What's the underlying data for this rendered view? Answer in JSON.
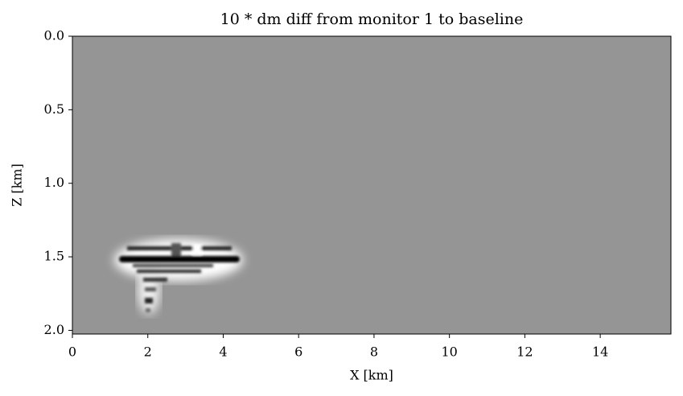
{
  "chart_data": {
    "type": "image",
    "title": "10 * dm diff from monitor 1 to baseline",
    "xlabel": "X [km]",
    "ylabel": "Z [km]",
    "xlim": [
      0,
      15.875
    ],
    "xticks": [
      0,
      2,
      4,
      6,
      8,
      10,
      12,
      14
    ],
    "ylim": [
      0,
      2.025
    ],
    "y_inverted": true,
    "yticks": [
      {
        "value": 0,
        "label": "0.0"
      },
      {
        "value": 0.5,
        "label": "0.5"
      },
      {
        "value": 1,
        "label": "1.0"
      },
      {
        "value": 1.5,
        "label": "1.5"
      },
      {
        "value": 2,
        "label": "2.0"
      }
    ],
    "colormap": "gray",
    "background": "#959595"
  }
}
